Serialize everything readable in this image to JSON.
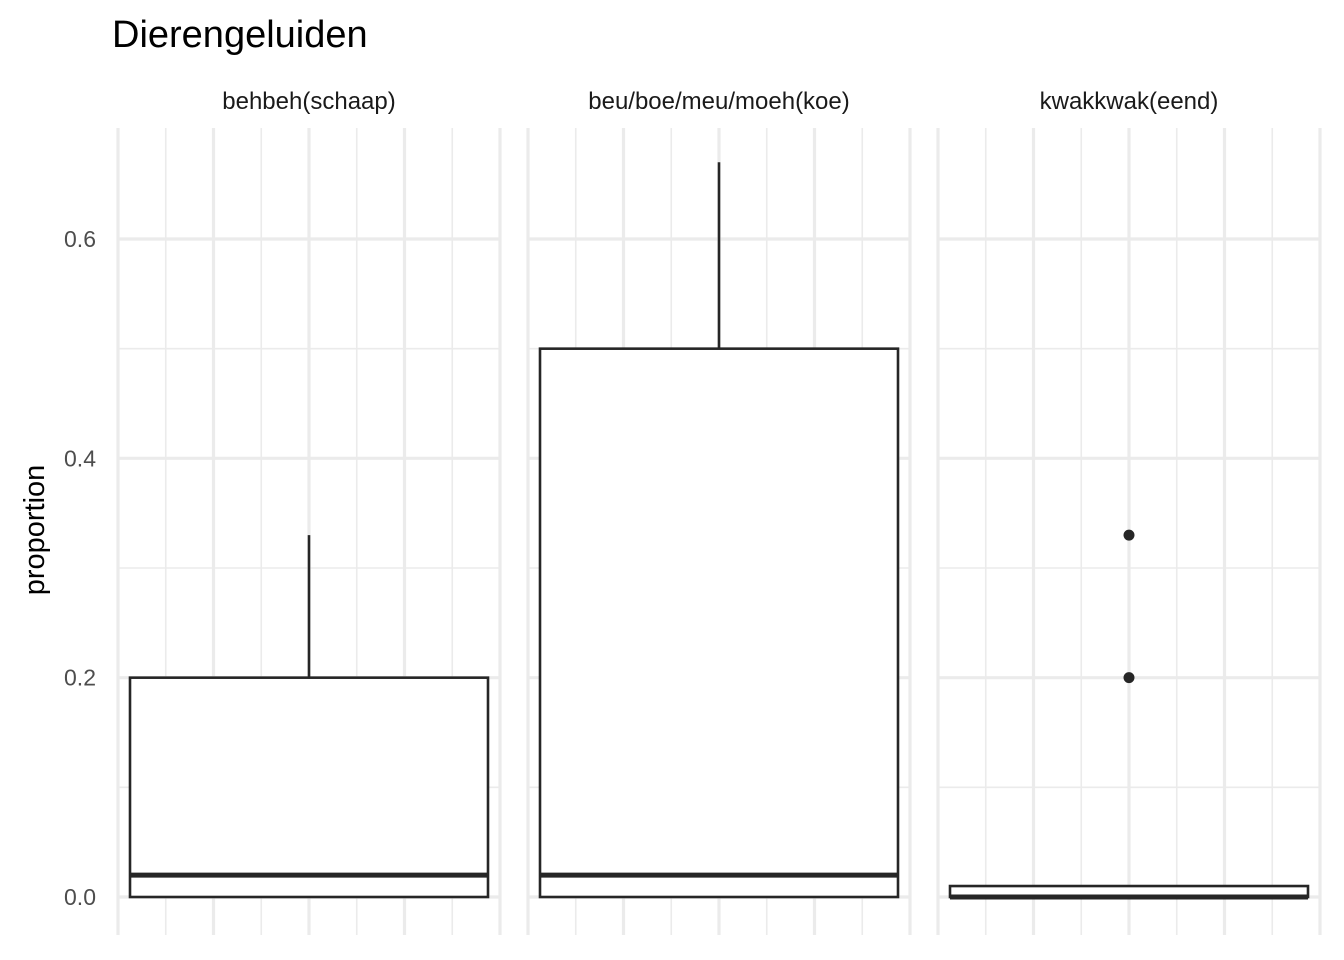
{
  "chart_data": {
    "type": "boxplot",
    "title": "Dierengeluiden",
    "ylabel": "proportion",
    "xlabel": "",
    "ylim": [
      -0.05,
      0.7
    ],
    "yticks": [
      0.0,
      0.2,
      0.4,
      0.6
    ],
    "ytick_labels": [
      "0.0",
      "0.2",
      "0.4",
      "0.6"
    ],
    "grid": true,
    "panels": [
      {
        "label": "behbeh(schaap)",
        "q1": 0.0,
        "median": 0.02,
        "q3": 0.2,
        "whisker_low": 0.0,
        "whisker_high": 0.33,
        "outliers": []
      },
      {
        "label": "beu/boe/meu/moeh(koe)",
        "q1": 0.0,
        "median": 0.02,
        "q3": 0.5,
        "whisker_low": 0.0,
        "whisker_high": 0.67,
        "outliers": []
      },
      {
        "label": "kwakkwak(eend)",
        "q1": 0.0,
        "median": 0.0,
        "q3": 0.01,
        "whisker_low": 0.0,
        "whisker_high": 0.01,
        "outliers": [
          0.2,
          0.33
        ]
      }
    ]
  }
}
